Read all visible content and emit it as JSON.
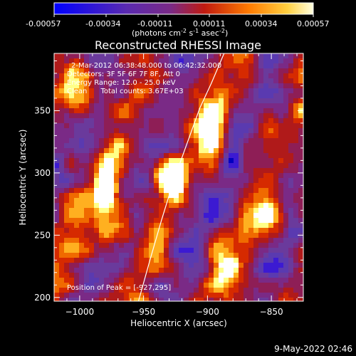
{
  "colorbar": {
    "ticks": [
      "-0.00057",
      "-0.00034",
      "-0.00011",
      "0.00011",
      "0.00034",
      "0.00057"
    ],
    "units_label": "(photons cm",
    "units_exp1": "-2",
    "units_mid1": " s",
    "units_exp2": "-1",
    "units_mid2": " asec",
    "units_exp3": "-2",
    "units_end": ")",
    "range": [
      -0.00057,
      0.00057
    ]
  },
  "title": "Reconstructed RHESSI Image",
  "info": {
    "line1": "2-Mar-2012 06:38:48.000 to 06:42:32.000",
    "line2": "Detectors: 3F 5F 6F 7F 8F, Att 0",
    "line3": "Energy Range: 12.0 - 25.0 keV",
    "line4": "Clean      Total counts: 3.67E+03"
  },
  "peak_label": "Position of Peak = [-927,295]",
  "footer_date": "9-May-2022 02:46",
  "colors": {
    "background": "#000000",
    "limb_line": "#ffffff",
    "palette": [
      "#0000c0",
      "#3c1ad2",
      "#5a3ab0",
      "#6a3a9c",
      "#7a2a86",
      "#8e1e56",
      "#b01a1a",
      "#d62a00",
      "#f06a00",
      "#ffb020",
      "#ffff88",
      "#ffffff"
    ]
  },
  "chart_data": {
    "type": "heatmap",
    "title": "Reconstructed RHESSI Image",
    "xlabel": "Heliocentric X (arcsec)",
    "ylabel": "Heliocentric Y (arcsec)",
    "xlim": [
      -1020,
      -825
    ],
    "ylim": [
      197,
      396
    ],
    "x_ticks": [
      -1000,
      -950,
      -900,
      -850
    ],
    "y_ticks": [
      200,
      250,
      300,
      350
    ],
    "x_tick_labels": [
      "−1000",
      "−950",
      "−900",
      "−850"
    ],
    "y_tick_labels": [
      "200",
      "250",
      "300",
      "350"
    ],
    "peak": [
      -927,
      295
    ],
    "limb_points": [
      [
        -954,
        197
      ],
      [
        -945,
        230
      ],
      [
        -936,
        262
      ],
      [
        -927,
        292
      ],
      [
        -918,
        318
      ],
      [
        -906,
        352
      ],
      [
        -897,
        372
      ],
      [
        -887,
        396
      ]
    ],
    "bright_streaks": [
      {
        "x": [
          -1010,
          -990
        ],
        "y": [
          345,
          390
        ],
        "value": 0.0005
      },
      {
        "x": [
          -985,
          -960
        ],
        "y": [
          230,
          330
        ],
        "value": 0.00045
      },
      {
        "x": [
          -940,
          -920
        ],
        "y": [
          285,
          310
        ],
        "value": 0.00057
      },
      {
        "x": [
          -905,
          -885
        ],
        "y": [
          300,
          370
        ],
        "value": 0.0004
      },
      {
        "x": [
          -860,
          -840
        ],
        "y": [
          245,
          275
        ],
        "value": 0.00045
      },
      {
        "x": [
          -895,
          -880
        ],
        "y": [
          210,
          250
        ],
        "value": 0.0003
      }
    ]
  }
}
